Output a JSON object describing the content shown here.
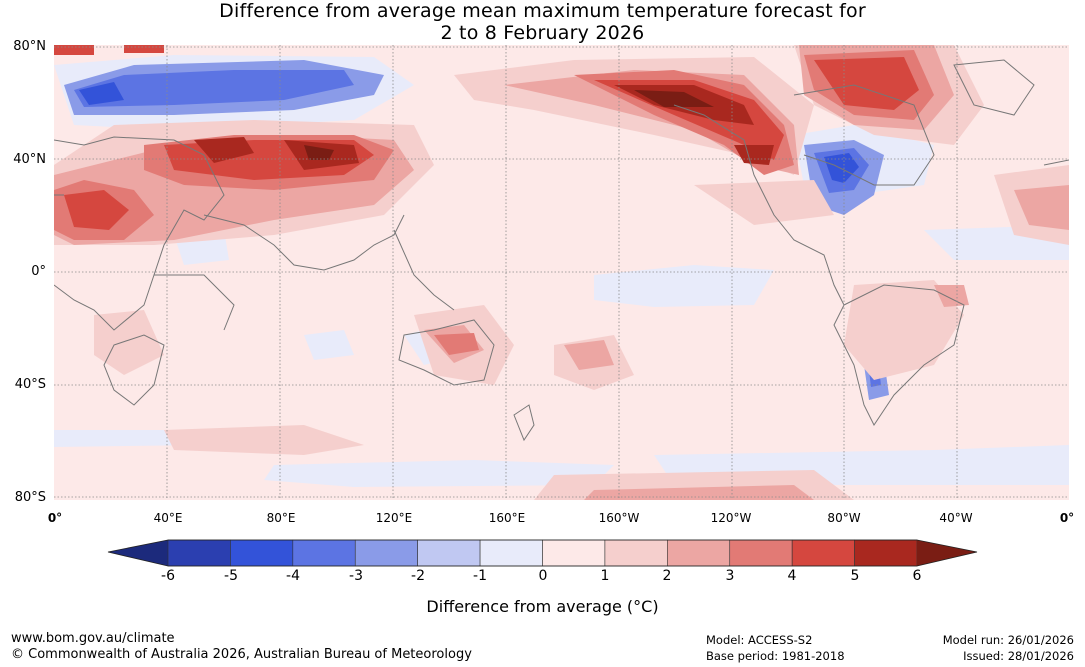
{
  "title": {
    "line1": "Difference from average mean maximum temperature forecast for",
    "line2": "2 to 8 February 2026"
  },
  "map": {
    "lat_labels": [
      "80°N",
      "40°N",
      "0°",
      "40°S",
      "80°S"
    ],
    "lon_labels": [
      "0°",
      "40°E",
      "80°E",
      "120°E",
      "160°E",
      "160°W",
      "120°W",
      "80°W",
      "40°W",
      "0°"
    ]
  },
  "colorbar": {
    "labels": [
      "-6",
      "-5",
      "-4",
      "-3",
      "-2",
      "-1",
      "0",
      "1",
      "2",
      "3",
      "4",
      "5",
      "6"
    ],
    "title": "Difference from average (°C)",
    "colors": [
      "#1c2a7c",
      "#2b3fb0",
      "#3353d9",
      "#5c74e3",
      "#8a9be8",
      "#c0c8f2",
      "#e8ebfa",
      "#fde9e8",
      "#f5cfcd",
      "#eca6a3",
      "#e27a75",
      "#d5473f",
      "#a9281f",
      "#7a1d14"
    ]
  },
  "footer": {
    "website": "www.bom.gov.au/climate",
    "copyright": "© Commonwealth of Australia 2026, Australian Bureau of Meteorology",
    "model": "Model: ACCESS-S2",
    "base_period": "Base period: 1981-2018",
    "model_run": "Model run: 26/01/2026",
    "issued": "Issued: 28/01/2026"
  }
}
